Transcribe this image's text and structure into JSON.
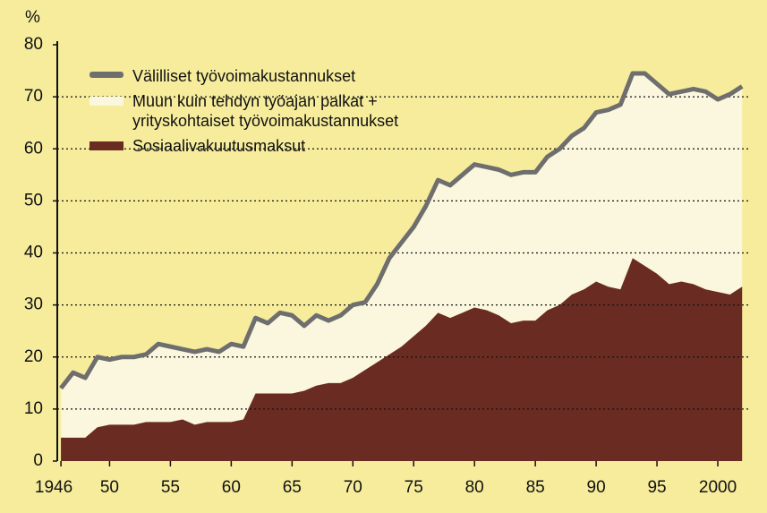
{
  "chart_data": {
    "type": "area",
    "y_unit": "%",
    "x": [
      1946,
      1947,
      1948,
      1949,
      1950,
      1951,
      1952,
      1953,
      1954,
      1955,
      1956,
      1957,
      1958,
      1959,
      1960,
      1961,
      1962,
      1963,
      1964,
      1965,
      1966,
      1967,
      1968,
      1969,
      1970,
      1971,
      1972,
      1973,
      1974,
      1975,
      1976,
      1977,
      1978,
      1979,
      1980,
      1981,
      1982,
      1983,
      1984,
      1985,
      1986,
      1987,
      1988,
      1989,
      1990,
      1991,
      1992,
      1993,
      1994,
      1995,
      1996,
      1997,
      1998,
      1999,
      2000,
      2001,
      2002
    ],
    "series": [
      {
        "name": "Välilliset työvoimakustannukset",
        "color": "#6e6e6e",
        "kind": "line",
        "values": [
          14,
          17,
          16,
          20,
          19.5,
          20,
          20,
          20.5,
          22.5,
          22,
          21.5,
          21,
          21.5,
          21,
          22.5,
          22,
          27.5,
          26.5,
          28.5,
          28,
          26,
          28,
          27,
          28,
          30,
          30.5,
          34,
          39,
          42,
          45,
          49,
          54,
          53,
          55,
          57,
          56.5,
          56,
          55,
          55.5,
          55.5,
          58.5,
          60,
          62.5,
          64,
          67,
          67.5,
          68.5,
          74.5,
          74.5,
          72.5,
          70.5,
          71,
          71.5,
          71,
          69.5,
          70.5,
          72
        ]
      },
      {
        "name": "Muun kuin tehdyn työajan palkat +\nyrityskohtaiset työvoimakustannukset",
        "color": "#faf7de",
        "kind": "area"
      },
      {
        "name": "Sosiaalivakuutusmaksut",
        "color": "#6a2c22",
        "kind": "area",
        "values": [
          4.5,
          4.5,
          4.5,
          6.5,
          7,
          7,
          7,
          7.5,
          7.5,
          7.5,
          8,
          7,
          7.5,
          7.5,
          7.5,
          8,
          13,
          13,
          13,
          13,
          13.5,
          14.5,
          15,
          15,
          16,
          17.5,
          19,
          20.5,
          22,
          24,
          26,
          28.5,
          27.5,
          28.5,
          29.5,
          29,
          28,
          26.5,
          27,
          27,
          29,
          30,
          32,
          33,
          34.5,
          33.5,
          33,
          39,
          37.5,
          36,
          34,
          34.5,
          34,
          33,
          32.5,
          32,
          33.5
        ]
      }
    ],
    "xlim": [
      1945.7,
      2002.5
    ],
    "xticks": [
      1946,
      {
        "value": 1950,
        "label": "50"
      },
      {
        "value": 1955,
        "label": "55"
      },
      {
        "value": 1960,
        "label": "60"
      },
      {
        "value": 1965,
        "label": "65"
      },
      {
        "value": 1970,
        "label": "70"
      },
      {
        "value": 1975,
        "label": "75"
      },
      {
        "value": 1980,
        "label": "80"
      },
      {
        "value": 1985,
        "label": "85"
      },
      {
        "value": 1990,
        "label": "90"
      },
      {
        "value": 1995,
        "label": "95"
      },
      2000
    ],
    "ylim": [
      0,
      80
    ],
    "yticks": [
      0,
      10,
      20,
      30,
      40,
      50,
      60,
      70,
      80
    ],
    "grid": true
  }
}
